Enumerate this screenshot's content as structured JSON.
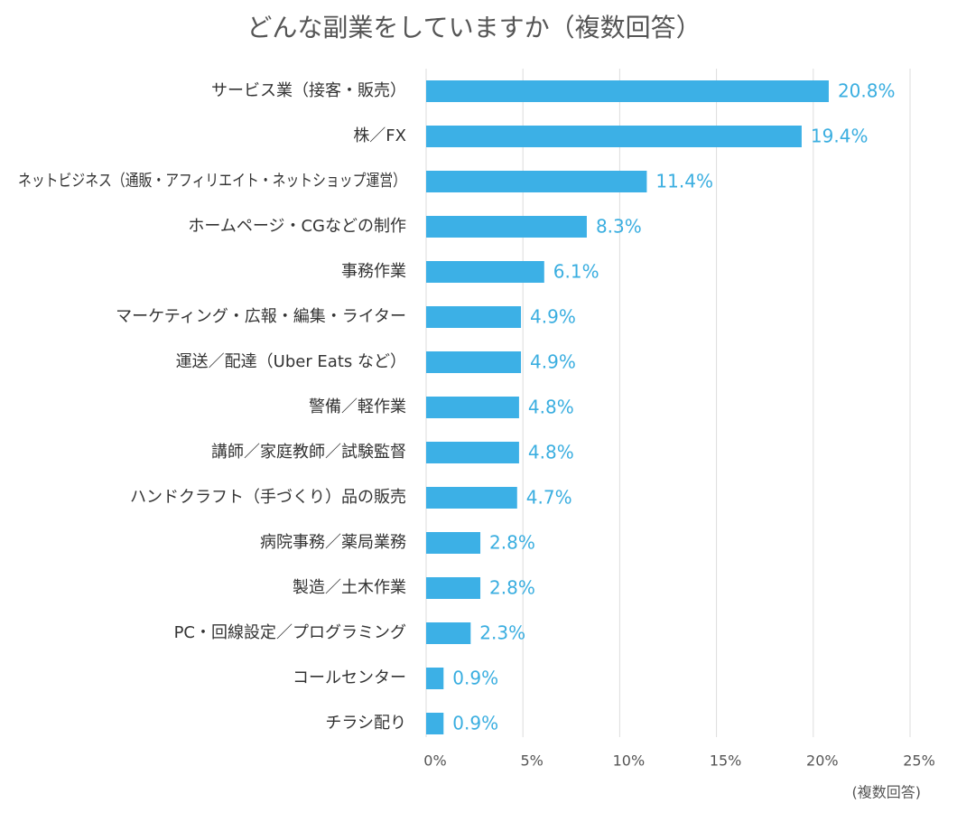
{
  "chart_data": {
    "type": "bar",
    "orientation": "horizontal",
    "title": "どんな副業をしていますか（複数回答）",
    "note": "(複数回答)",
    "color": "#3cb0e6",
    "categories": [
      "サービス業（接客・販売）",
      "株／FX",
      "ネットビジネス（通販・アフィリエイト・ネットショップ運営）",
      "ホームページ・CGなどの制作",
      "事務作業",
      "マーケティング・広報・編集・ライター",
      "運送／配達（Uber Eats など）",
      "警備／軽作業",
      "講師／家庭教師／試験監督",
      "ハンドクラフト（手づくり）品の販売",
      "病院事務／薬局業務",
      "製造／土木作業",
      "PC・回線設定／プログラミング",
      "コールセンター",
      "チラシ配り"
    ],
    "values": [
      20.8,
      19.4,
      11.4,
      8.3,
      6.1,
      4.9,
      4.9,
      4.8,
      4.8,
      4.7,
      2.8,
      2.8,
      2.3,
      0.9,
      0.9
    ],
    "value_labels": [
      "20.8%",
      "19.4%",
      "11.4%",
      "8.3%",
      "6.1%",
      "4.9%",
      "4.9%",
      "4.8%",
      "4.8%",
      "4.7%",
      "2.8%",
      "2.8%",
      "2.3%",
      "0.9%",
      "0.9%"
    ],
    "xlim": [
      0,
      25
    ],
    "xticks": [
      {
        "value": 0,
        "label": "0%"
      },
      {
        "value": 5,
        "label": "5%"
      },
      {
        "value": 10,
        "label": "10%"
      },
      {
        "value": 15,
        "label": "15%"
      },
      {
        "value": 20,
        "label": "20%"
      },
      {
        "value": 25,
        "label": "25%"
      }
    ],
    "grid": true
  }
}
